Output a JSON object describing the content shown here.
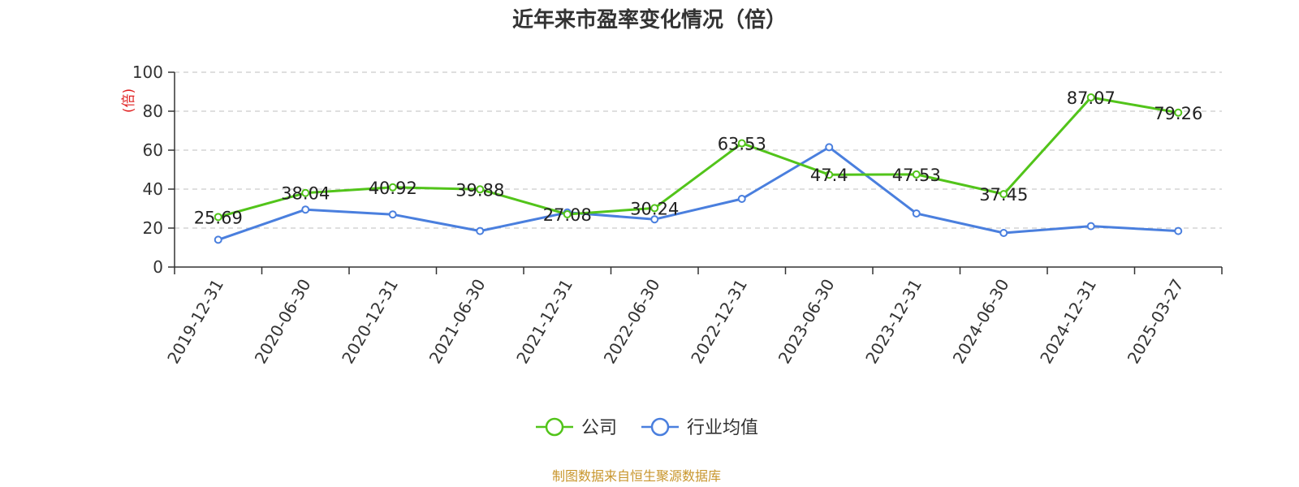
{
  "chart_data": {
    "type": "line",
    "title": "近年来市盈率变化情况（倍）",
    "ylabel": "(倍)",
    "ylim": [
      0,
      100
    ],
    "yticks": [
      0,
      20,
      40,
      60,
      80,
      100
    ],
    "grid": true,
    "legend_position": "bottom",
    "categories": [
      "2019-12-31",
      "2020-06-30",
      "2020-12-31",
      "2021-06-30",
      "2021-12-31",
      "2022-06-30",
      "2022-12-31",
      "2023-06-30",
      "2023-12-31",
      "2024-06-30",
      "2024-12-31",
      "2025-03-27"
    ],
    "series": [
      {
        "name": "公司",
        "color": "#52c41a",
        "values": [
          25.69,
          38.04,
          40.92,
          39.88,
          27.08,
          30.24,
          63.53,
          47.4,
          47.53,
          37.45,
          87.07,
          79.26
        ],
        "labels": [
          "25.69",
          "38.04",
          "40.92",
          "39.88",
          "27.08",
          "30.24",
          "63.53",
          "47.4",
          "47.53",
          "37.45",
          "87.07",
          "79.26"
        ]
      },
      {
        "name": "行业均值",
        "color": "#4a7fde",
        "values": [
          14,
          29.5,
          27,
          18.5,
          28,
          24.5,
          35,
          61.5,
          27.5,
          17.5,
          21,
          18.5
        ]
      }
    ]
  },
  "colors": {
    "ylabel": "#e02020",
    "source": "#c8962d",
    "axis": "#333333",
    "grid": "#cccccc"
  },
  "source": "制图数据来自恒生聚源数据库"
}
